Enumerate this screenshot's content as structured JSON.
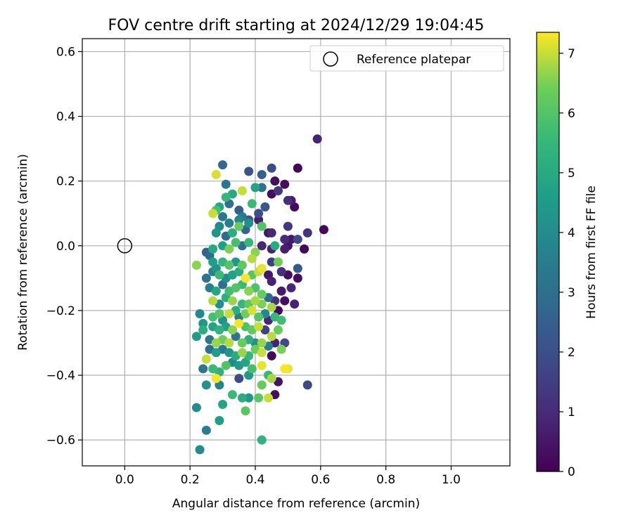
{
  "chart_data": {
    "type": "scatter",
    "title": "FOV centre drift starting at 2024/12/29 19:04:45",
    "xlabel": "Angular distance from reference (arcmin)",
    "ylabel": "Rotation from reference (arcmin)",
    "xlim": [
      -0.13,
      1.18
    ],
    "ylim": [
      -0.68,
      0.64
    ],
    "xticks": [
      0.0,
      0.2,
      0.4,
      0.6,
      0.8,
      1.0
    ],
    "xtick_labels": [
      "0.0",
      "0.2",
      "0.4",
      "0.6",
      "0.8",
      "1.0"
    ],
    "yticks": [
      -0.6,
      -0.4,
      -0.2,
      0.0,
      0.2,
      0.4,
      0.6
    ],
    "ytick_labels": [
      "−0.6",
      "−0.4",
      "−0.2",
      "0.0",
      "0.2",
      "0.4",
      "0.6"
    ],
    "grid": true,
    "legend": {
      "position": "top-right",
      "entries": [
        "Reference platepar"
      ]
    },
    "reference_point": {
      "name": "Reference platepar",
      "x": 0.0,
      "y": 0.0
    },
    "colorbar": {
      "label": "Hours from first FF file",
      "colormap": "viridis",
      "range": [
        0,
        7.35
      ],
      "ticks": [
        0,
        1,
        2,
        3,
        4,
        5,
        6,
        7
      ],
      "tick_labels": [
        "0",
        "1",
        "2",
        "3",
        "4",
        "5",
        "6",
        "7"
      ]
    },
    "points": [
      {
        "x": 0.59,
        "y": 0.33,
        "c": 0.8
      },
      {
        "x": 0.53,
        "y": 0.24,
        "c": 0.1
      },
      {
        "x": 0.49,
        "y": 0.19,
        "c": 0.3
      },
      {
        "x": 0.46,
        "y": 0.2,
        "c": 0.3
      },
      {
        "x": 0.47,
        "y": 0.17,
        "c": 1.3
      },
      {
        "x": 0.51,
        "y": 0.14,
        "c": 0.6
      },
      {
        "x": 0.52,
        "y": 0.12,
        "c": 0.2
      },
      {
        "x": 0.5,
        "y": 0.14,
        "c": 1.1
      },
      {
        "x": 0.45,
        "y": 0.16,
        "c": 0.3
      },
      {
        "x": 0.45,
        "y": 0.24,
        "c": 2.0
      },
      {
        "x": 0.42,
        "y": 0.22,
        "c": 2.5
      },
      {
        "x": 0.38,
        "y": 0.23,
        "c": 2.1
      },
      {
        "x": 0.3,
        "y": 0.25,
        "c": 2.8
      },
      {
        "x": 0.31,
        "y": 0.19,
        "c": 3.2
      },
      {
        "x": 0.28,
        "y": 0.22,
        "c": 7.1
      },
      {
        "x": 0.36,
        "y": 0.17,
        "c": 7.0
      },
      {
        "x": 0.33,
        "y": 0.16,
        "c": 5.0
      },
      {
        "x": 0.31,
        "y": 0.15,
        "c": 5.5
      },
      {
        "x": 0.4,
        "y": 0.18,
        "c": 4.8
      },
      {
        "x": 0.42,
        "y": 0.18,
        "c": 3.1
      },
      {
        "x": 0.43,
        "y": 0.12,
        "c": 2.3
      },
      {
        "x": 0.41,
        "y": 0.1,
        "c": 2.0
      },
      {
        "x": 0.39,
        "y": 0.13,
        "c": 5.6
      },
      {
        "x": 0.35,
        "y": 0.11,
        "c": 2.5
      },
      {
        "x": 0.32,
        "y": 0.13,
        "c": 3.0
      },
      {
        "x": 0.28,
        "y": 0.11,
        "c": 5.8
      },
      {
        "x": 0.29,
        "y": 0.12,
        "c": 4.9
      },
      {
        "x": 0.27,
        "y": 0.1,
        "c": 7.0
      },
      {
        "x": 0.3,
        "y": 0.09,
        "c": 3.3
      },
      {
        "x": 0.35,
        "y": 0.08,
        "c": 3.8
      },
      {
        "x": 0.38,
        "y": 0.08,
        "c": 2.2
      },
      {
        "x": 0.41,
        "y": 0.08,
        "c": 0.7
      },
      {
        "x": 0.42,
        "y": 0.06,
        "c": 6.0
      },
      {
        "x": 0.38,
        "y": 0.07,
        "c": 4.1
      },
      {
        "x": 0.36,
        "y": 0.09,
        "c": 3.4
      },
      {
        "x": 0.32,
        "y": 0.07,
        "c": 3.6
      },
      {
        "x": 0.33,
        "y": 0.04,
        "c": 5.2
      },
      {
        "x": 0.29,
        "y": 0.06,
        "c": 3.9
      },
      {
        "x": 0.28,
        "y": 0.04,
        "c": 4.3
      },
      {
        "x": 0.31,
        "y": 0.03,
        "c": 2.9
      },
      {
        "x": 0.35,
        "y": 0.06,
        "c": 6.3
      },
      {
        "x": 0.37,
        "y": 0.05,
        "c": 2.7
      },
      {
        "x": 0.44,
        "y": 0.04,
        "c": 0.5
      },
      {
        "x": 0.45,
        "y": 0.04,
        "c": 0.9
      },
      {
        "x": 0.5,
        "y": 0.06,
        "c": 1.3
      },
      {
        "x": 0.49,
        "y": 0.02,
        "c": 1.0
      },
      {
        "x": 0.51,
        "y": 0.02,
        "c": 0.5
      },
      {
        "x": 0.53,
        "y": 0.02,
        "c": 1.8
      },
      {
        "x": 0.56,
        "y": 0.04,
        "c": 1.2
      },
      {
        "x": 0.61,
        "y": 0.05,
        "c": 0.2
      },
      {
        "x": 0.55,
        "y": -0.01,
        "c": 0.2
      },
      {
        "x": 0.5,
        "y": 0.0,
        "c": 0.4
      },
      {
        "x": 0.49,
        "y": -0.01,
        "c": 0.7
      },
      {
        "x": 0.46,
        "y": 0.0,
        "c": 5.0
      },
      {
        "x": 0.45,
        "y": -0.01,
        "c": 0.8
      },
      {
        "x": 0.42,
        "y": 0.0,
        "c": 0.9
      },
      {
        "x": 0.38,
        "y": 0.01,
        "c": 5.5
      },
      {
        "x": 0.36,
        "y": 0.0,
        "c": 3.0
      },
      {
        "x": 0.34,
        "y": 0.01,
        "c": 5.8
      },
      {
        "x": 0.32,
        "y": -0.01,
        "c": 6.5
      },
      {
        "x": 0.3,
        "y": 0.0,
        "c": 4.6
      },
      {
        "x": 0.27,
        "y": -0.01,
        "c": 5.0
      },
      {
        "x": 0.25,
        "y": -0.02,
        "c": 2.5
      },
      {
        "x": 0.26,
        "y": -0.03,
        "c": 2.8
      },
      {
        "x": 0.22,
        "y": -0.06,
        "c": 6.6
      },
      {
        "x": 0.27,
        "y": -0.05,
        "c": 4.6
      },
      {
        "x": 0.28,
        "y": -0.07,
        "c": 4.2
      },
      {
        "x": 0.3,
        "y": -0.05,
        "c": 5.4
      },
      {
        "x": 0.32,
        "y": -0.06,
        "c": 6.0
      },
      {
        "x": 0.34,
        "y": -0.05,
        "c": 4.4
      },
      {
        "x": 0.36,
        "y": -0.06,
        "c": 6.2
      },
      {
        "x": 0.39,
        "y": -0.04,
        "c": 6.9
      },
      {
        "x": 0.4,
        "y": -0.02,
        "c": 6.6
      },
      {
        "x": 0.42,
        "y": -0.07,
        "c": 7.2
      },
      {
        "x": 0.45,
        "y": -0.05,
        "c": 1.5
      },
      {
        "x": 0.47,
        "y": -0.05,
        "c": 6.4
      },
      {
        "x": 0.48,
        "y": -0.08,
        "c": 1.1
      },
      {
        "x": 0.5,
        "y": -0.09,
        "c": 0.3
      },
      {
        "x": 0.53,
        "y": -0.07,
        "c": 2.3
      },
      {
        "x": 0.53,
        "y": -0.1,
        "c": 0.3
      },
      {
        "x": 0.51,
        "y": -0.13,
        "c": 0.9
      },
      {
        "x": 0.48,
        "y": -0.14,
        "c": 0.6
      },
      {
        "x": 0.45,
        "y": -0.11,
        "c": 0.8
      },
      {
        "x": 0.44,
        "y": -0.09,
        "c": 0.5
      },
      {
        "x": 0.41,
        "y": -0.08,
        "c": 7.0
      },
      {
        "x": 0.39,
        "y": -0.09,
        "c": 6.1
      },
      {
        "x": 0.37,
        "y": -0.1,
        "c": 7.3
      },
      {
        "x": 0.35,
        "y": -0.08,
        "c": 5.1
      },
      {
        "x": 0.33,
        "y": -0.09,
        "c": 4.7
      },
      {
        "x": 0.31,
        "y": -0.1,
        "c": 4.0
      },
      {
        "x": 0.29,
        "y": -0.09,
        "c": 5.6
      },
      {
        "x": 0.27,
        "y": -0.08,
        "c": 3.6
      },
      {
        "x": 0.25,
        "y": -0.1,
        "c": 3.2
      },
      {
        "x": 0.26,
        "y": -0.13,
        "c": 3.6
      },
      {
        "x": 0.28,
        "y": -0.14,
        "c": 4.9
      },
      {
        "x": 0.3,
        "y": -0.12,
        "c": 3.0
      },
      {
        "x": 0.32,
        "y": -0.14,
        "c": 5.7
      },
      {
        "x": 0.34,
        "y": -0.13,
        "c": 6.0
      },
      {
        "x": 0.36,
        "y": -0.12,
        "c": 5.6
      },
      {
        "x": 0.38,
        "y": -0.14,
        "c": 6.6
      },
      {
        "x": 0.4,
        "y": -0.13,
        "c": 5.9
      },
      {
        "x": 0.42,
        "y": -0.15,
        "c": 6.3
      },
      {
        "x": 0.44,
        "y": -0.16,
        "c": 2.9
      },
      {
        "x": 0.46,
        "y": -0.17,
        "c": 1.2
      },
      {
        "x": 0.49,
        "y": -0.17,
        "c": 0.3
      },
      {
        "x": 0.52,
        "y": -0.18,
        "c": 0.8
      },
      {
        "x": 0.47,
        "y": -0.2,
        "c": 0.2
      },
      {
        "x": 0.45,
        "y": -0.19,
        "c": 6.8
      },
      {
        "x": 0.42,
        "y": -0.18,
        "c": 6.5
      },
      {
        "x": 0.4,
        "y": -0.17,
        "c": 6.8
      },
      {
        "x": 0.38,
        "y": -0.18,
        "c": 6.2
      },
      {
        "x": 0.36,
        "y": -0.18,
        "c": 5.5
      },
      {
        "x": 0.33,
        "y": -0.17,
        "c": 6.7
      },
      {
        "x": 0.31,
        "y": -0.16,
        "c": 5.2
      },
      {
        "x": 0.29,
        "y": -0.18,
        "c": 4.1
      },
      {
        "x": 0.27,
        "y": -0.17,
        "c": 6.9
      },
      {
        "x": 0.23,
        "y": -0.21,
        "c": 3.9
      },
      {
        "x": 0.24,
        "y": -0.24,
        "c": 4.4
      },
      {
        "x": 0.27,
        "y": -0.22,
        "c": 5.8
      },
      {
        "x": 0.29,
        "y": -0.21,
        "c": 6.1
      },
      {
        "x": 0.3,
        "y": -0.23,
        "c": 4.2
      },
      {
        "x": 0.32,
        "y": -0.21,
        "c": 7.0
      },
      {
        "x": 0.34,
        "y": -0.2,
        "c": 5.1
      },
      {
        "x": 0.35,
        "y": -0.22,
        "c": 3.5
      },
      {
        "x": 0.37,
        "y": -0.21,
        "c": 6.4
      },
      {
        "x": 0.39,
        "y": -0.2,
        "c": 7.1
      },
      {
        "x": 0.41,
        "y": -0.22,
        "c": 6.0
      },
      {
        "x": 0.43,
        "y": -0.21,
        "c": 3.8
      },
      {
        "x": 0.44,
        "y": -0.23,
        "c": 0.9
      },
      {
        "x": 0.46,
        "y": -0.22,
        "c": 5.5
      },
      {
        "x": 0.48,
        "y": -0.23,
        "c": 5.7
      },
      {
        "x": 0.47,
        "y": -0.26,
        "c": 6.3
      },
      {
        "x": 0.45,
        "y": -0.28,
        "c": 6.9
      },
      {
        "x": 0.43,
        "y": -0.26,
        "c": 1.6
      },
      {
        "x": 0.41,
        "y": -0.25,
        "c": 7.0
      },
      {
        "x": 0.39,
        "y": -0.26,
        "c": 6.2
      },
      {
        "x": 0.37,
        "y": -0.25,
        "c": 5.9
      },
      {
        "x": 0.35,
        "y": -0.24,
        "c": 7.3
      },
      {
        "x": 0.33,
        "y": -0.26,
        "c": 6.6
      },
      {
        "x": 0.31,
        "y": -0.25,
        "c": 4.7
      },
      {
        "x": 0.29,
        "y": -0.26,
        "c": 5.3
      },
      {
        "x": 0.27,
        "y": -0.25,
        "c": 4.8
      },
      {
        "x": 0.24,
        "y": -0.26,
        "c": 5.1
      },
      {
        "x": 0.22,
        "y": -0.28,
        "c": 4.5
      },
      {
        "x": 0.26,
        "y": -0.29,
        "c": 3.3
      },
      {
        "x": 0.28,
        "y": -0.3,
        "c": 6.7
      },
      {
        "x": 0.3,
        "y": -0.29,
        "c": 6.4
      },
      {
        "x": 0.32,
        "y": -0.3,
        "c": 6.9
      },
      {
        "x": 0.34,
        "y": -0.28,
        "c": 3.1
      },
      {
        "x": 0.36,
        "y": -0.3,
        "c": 6.3
      },
      {
        "x": 0.38,
        "y": -0.29,
        "c": 5.2
      },
      {
        "x": 0.4,
        "y": -0.3,
        "c": 4.1
      },
      {
        "x": 0.42,
        "y": -0.3,
        "c": 6.7
      },
      {
        "x": 0.44,
        "y": -0.31,
        "c": 3.6
      },
      {
        "x": 0.46,
        "y": -0.3,
        "c": 0.8
      },
      {
        "x": 0.49,
        "y": -0.3,
        "c": 1.8
      },
      {
        "x": 0.48,
        "y": -0.32,
        "c": 6.5
      },
      {
        "x": 0.45,
        "y": -0.34,
        "c": 0.2
      },
      {
        "x": 0.42,
        "y": -0.33,
        "c": 7.0
      },
      {
        "x": 0.4,
        "y": -0.32,
        "c": 6.4
      },
      {
        "x": 0.38,
        "y": -0.34,
        "c": 5.5
      },
      {
        "x": 0.36,
        "y": -0.33,
        "c": 6.7
      },
      {
        "x": 0.34,
        "y": -0.34,
        "c": 5.1
      },
      {
        "x": 0.32,
        "y": -0.33,
        "c": 4.3
      },
      {
        "x": 0.3,
        "y": -0.32,
        "c": 3.4
      },
      {
        "x": 0.28,
        "y": -0.33,
        "c": 4.6
      },
      {
        "x": 0.26,
        "y": -0.32,
        "c": 3.0
      },
      {
        "x": 0.25,
        "y": -0.35,
        "c": 7.0
      },
      {
        "x": 0.24,
        "y": -0.38,
        "c": 3.2
      },
      {
        "x": 0.27,
        "y": -0.38,
        "c": 5.6
      },
      {
        "x": 0.29,
        "y": -0.39,
        "c": 5.3
      },
      {
        "x": 0.28,
        "y": -0.41,
        "c": 7.3
      },
      {
        "x": 0.31,
        "y": -0.37,
        "c": 6.0
      },
      {
        "x": 0.33,
        "y": -0.36,
        "c": 3.9
      },
      {
        "x": 0.35,
        "y": -0.37,
        "c": 4.5
      },
      {
        "x": 0.37,
        "y": -0.36,
        "c": 4.8
      },
      {
        "x": 0.39,
        "y": -0.38,
        "c": 5.8
      },
      {
        "x": 0.42,
        "y": -0.37,
        "c": 7.2
      },
      {
        "x": 0.44,
        "y": -0.4,
        "c": 5.5
      },
      {
        "x": 0.35,
        "y": -0.41,
        "c": 1.9
      },
      {
        "x": 0.38,
        "y": -0.4,
        "c": 4.4
      },
      {
        "x": 0.45,
        "y": -0.41,
        "c": 6.8
      },
      {
        "x": 0.47,
        "y": -0.42,
        "c": 0.4
      },
      {
        "x": 0.5,
        "y": -0.38,
        "c": 7.2
      },
      {
        "x": 0.49,
        "y": -0.38,
        "c": 7.3
      },
      {
        "x": 0.56,
        "y": -0.43,
        "c": 1.8
      },
      {
        "x": 0.46,
        "y": -0.46,
        "c": 0.3
      },
      {
        "x": 0.44,
        "y": -0.47,
        "c": 7.0
      },
      {
        "x": 0.42,
        "y": -0.43,
        "c": 6.3
      },
      {
        "x": 0.41,
        "y": -0.47,
        "c": 6.1
      },
      {
        "x": 0.38,
        "y": -0.47,
        "c": 4.4
      },
      {
        "x": 0.36,
        "y": -0.47,
        "c": 5.2
      },
      {
        "x": 0.33,
        "y": -0.46,
        "c": 5.6
      },
      {
        "x": 0.37,
        "y": -0.51,
        "c": 6.1
      },
      {
        "x": 0.3,
        "y": -0.49,
        "c": 4.8
      },
      {
        "x": 0.25,
        "y": -0.43,
        "c": 4.2
      },
      {
        "x": 0.29,
        "y": -0.43,
        "c": 3.7
      },
      {
        "x": 0.22,
        "y": -0.5,
        "c": 4.0
      },
      {
        "x": 0.29,
        "y": -0.54,
        "c": 4.6
      },
      {
        "x": 0.25,
        "y": -0.57,
        "c": 3.5
      },
      {
        "x": 0.42,
        "y": -0.6,
        "c": 5.3
      },
      {
        "x": 0.23,
        "y": -0.63,
        "c": 4.0
      }
    ]
  }
}
